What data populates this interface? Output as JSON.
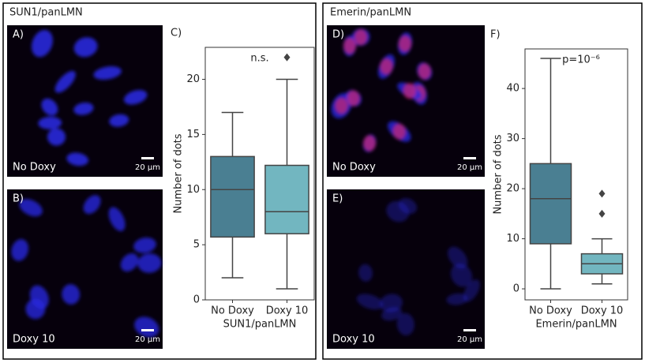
{
  "panels": [
    {
      "title": "SUN1/panLMN",
      "images": [
        {
          "letter": "A)",
          "label": "No Doxy",
          "scale": "20 μm"
        },
        {
          "letter": "B)",
          "label": "Doxy 10",
          "scale": "20 μm"
        }
      ]
    },
    {
      "title": "Emerin/panLMN",
      "images": [
        {
          "letter": "D)",
          "label": "No Doxy",
          "scale": "20 μm"
        },
        {
          "letter": "E)",
          "label": "Doxy 10",
          "scale": "20 μm"
        }
      ]
    }
  ],
  "chart_data": [
    {
      "type": "box",
      "title": "C)",
      "xlabel": "SUN1/panLMN",
      "ylabel": "Number of dots",
      "annotation": "n.s.",
      "categories": [
        "No Doxy",
        "Doxy 10"
      ],
      "colors": [
        "#4a7f92",
        "#72b6c0"
      ],
      "boxes": [
        {
          "min": 2,
          "q1": 5.7,
          "median": 10,
          "q3": 13,
          "max": 17,
          "outliers": []
        },
        {
          "min": 1,
          "q1": 6,
          "median": 8,
          "q3": 12.2,
          "max": 20,
          "outliers": [
            22
          ]
        }
      ],
      "ylim": [
        0,
        22.9
      ],
      "yticks": [
        0,
        5,
        10,
        15,
        20
      ]
    },
    {
      "type": "box",
      "title": "F)",
      "xlabel": "Emerin/panLMN",
      "ylabel": "Number of dots",
      "annotation": "p=10⁻⁶",
      "categories": [
        "No Doxy",
        "Doxy 10"
      ],
      "colors": [
        "#4a7f92",
        "#72b6c0"
      ],
      "boxes": [
        {
          "min": 0,
          "q1": 9,
          "median": 18,
          "q3": 25,
          "max": 46,
          "outliers": []
        },
        {
          "min": 1,
          "q1": 3,
          "median": 5,
          "q3": 7,
          "max": 10,
          "outliers": [
            15,
            19
          ]
        }
      ],
      "ylim": [
        -2.2,
        47.9
      ],
      "yticks": [
        0,
        10,
        20,
        30,
        40
      ]
    }
  ]
}
